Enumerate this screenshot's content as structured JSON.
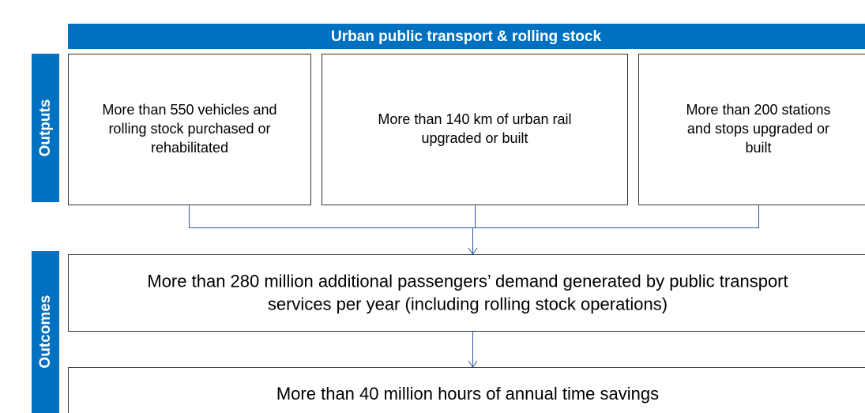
{
  "header": {
    "title": "Urban public transport & rolling stock"
  },
  "sections": [
    {
      "label": "Outputs"
    },
    {
      "label": "Outcomes"
    }
  ],
  "outputs": [
    {
      "lines": [
        "More than 550 vehicles and",
        "rolling stock purchased or",
        "rehabilitated"
      ]
    },
    {
      "lines": [
        "More than 140 km of urban rail",
        "upgraded or built"
      ]
    },
    {
      "lines": [
        "More than 200 stations",
        "and stops upgraded or",
        "built"
      ]
    }
  ],
  "outcomes": [
    {
      "lines": [
        "More than 280 million additional passengers’ demand generated by public transport",
        "services per year (including rolling stock operations)"
      ]
    },
    {
      "lines": [
        "More than 40 million hours of annual time savings"
      ]
    }
  ]
}
